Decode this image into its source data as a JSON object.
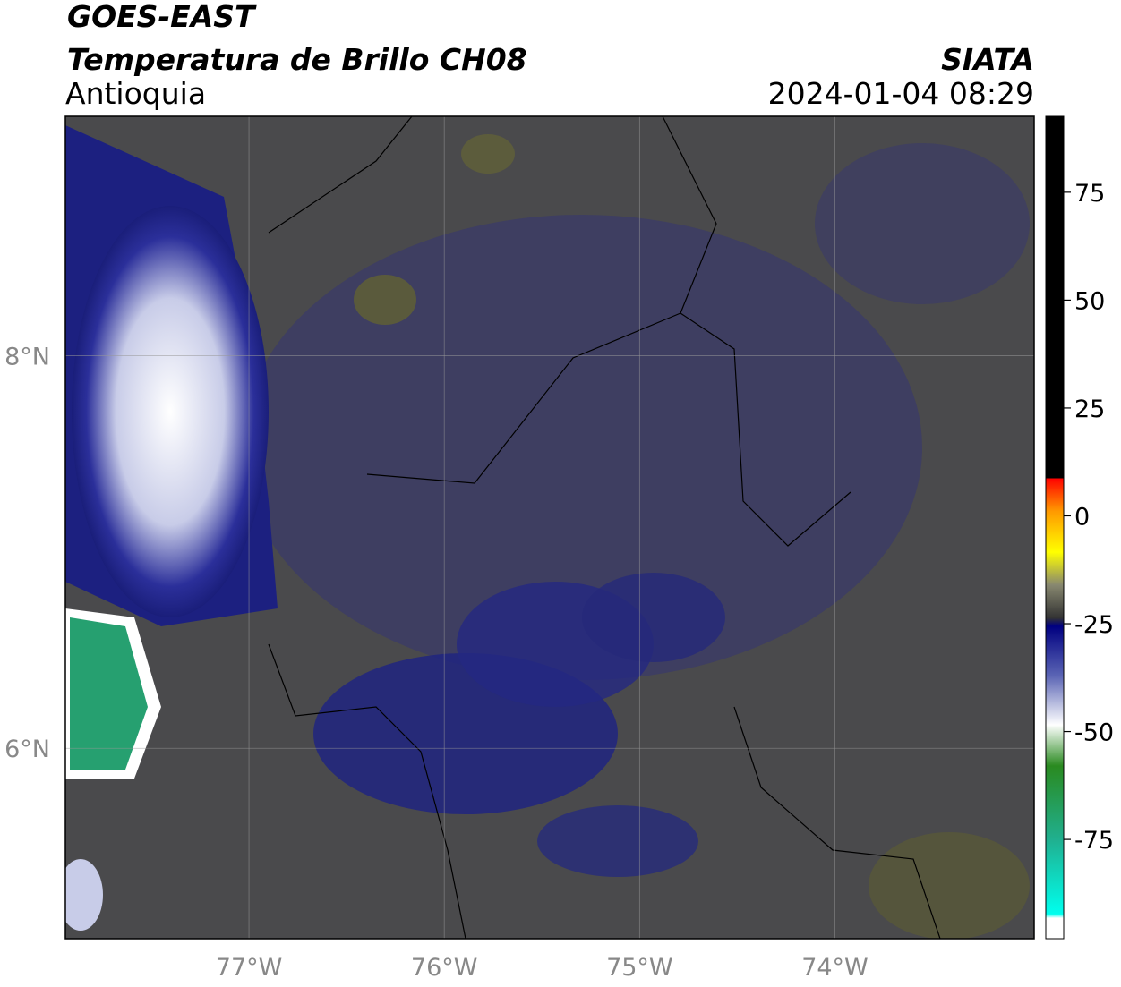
{
  "header": {
    "title": "GOES-EAST",
    "subtitle": "Temperatura de Brillo CH08",
    "region": "Antioquia",
    "org": "SIATA",
    "datetime": "2024-01-04 08:29"
  },
  "map": {
    "lonlim": [
      -77.94,
      -72.98
    ],
    "latlim": [
      5.03,
      9.22
    ],
    "lonticks": [
      {
        "value": -77,
        "label": "77°W"
      },
      {
        "value": -76,
        "label": "76°W"
      },
      {
        "value": -75,
        "label": "75°W"
      },
      {
        "value": -74,
        "label": "74°W"
      }
    ],
    "latticks": [
      {
        "value": 8,
        "label": "8°N"
      },
      {
        "value": 6,
        "label": "6°N"
      }
    ]
  },
  "colorbar": {
    "lim": [
      -98,
      92.6
    ],
    "ticks": [
      75,
      50,
      25,
      0,
      -25,
      -50,
      -75
    ]
  }
}
